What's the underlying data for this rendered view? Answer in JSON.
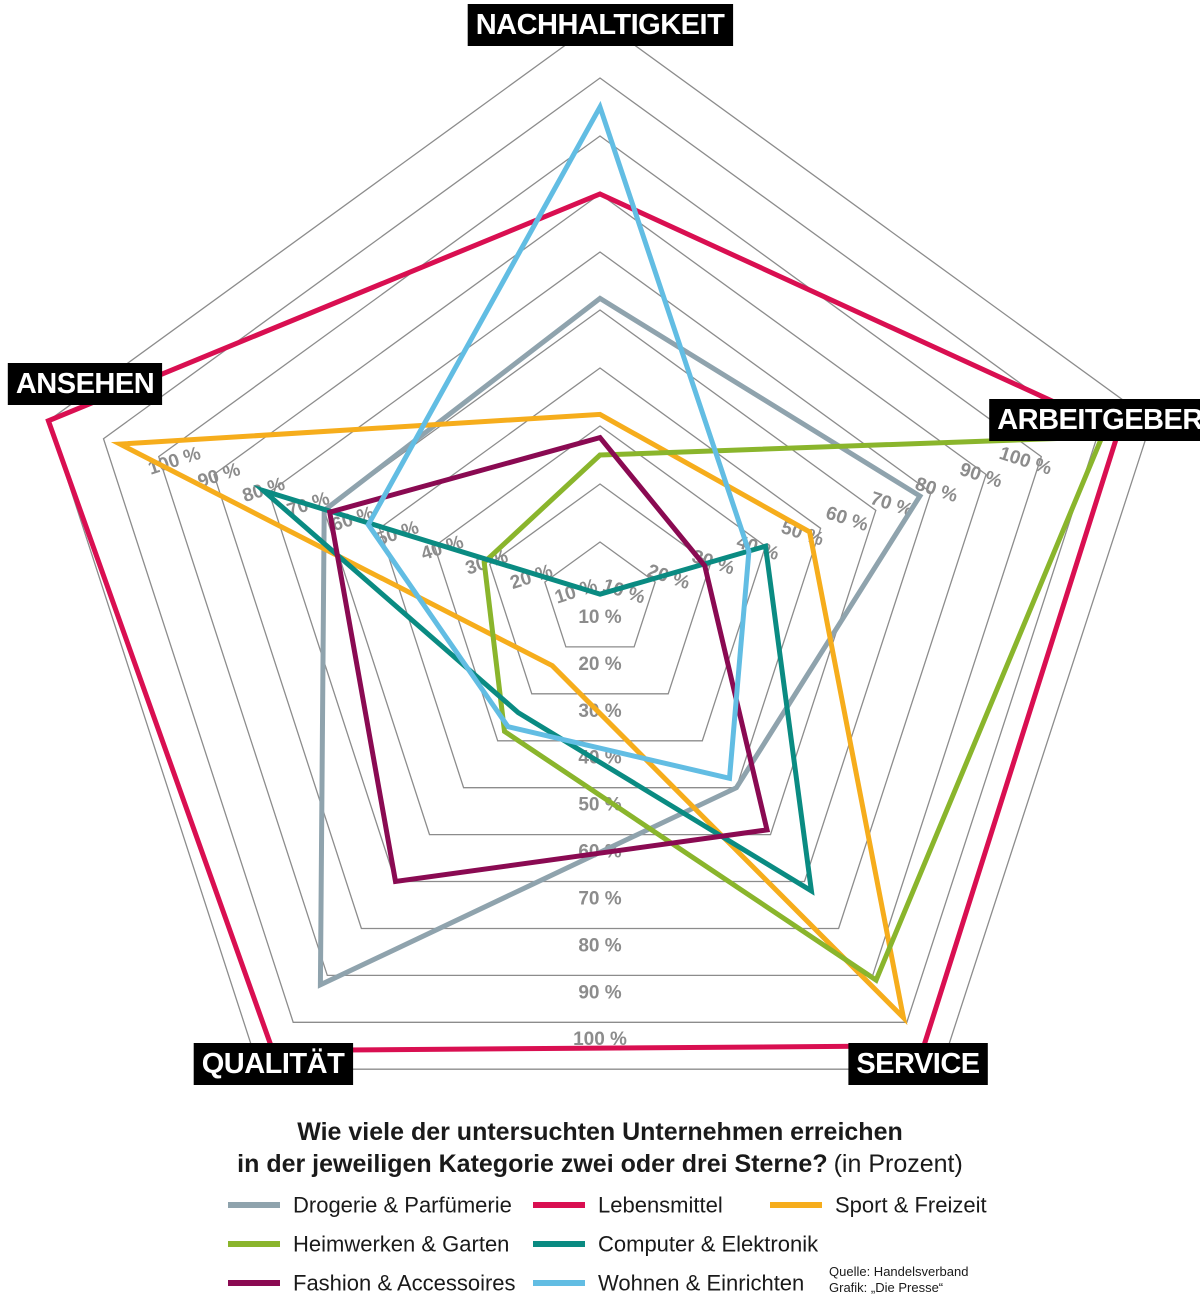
{
  "chart_data": {
    "type": "radar",
    "title": "Wie viele der untersuchten Unternehmen erreichen",
    "title_line2": "in der jeweiligen Kategorie zwei oder drei Sterne?",
    "title_suffix": "(in Prozent)",
    "axes": [
      "NACHHALTIGKEIT",
      "ARBEITGEBER",
      "SERVICE",
      "QUALITÄT",
      "ANSEHEN"
    ],
    "range": [
      0,
      100
    ],
    "grid_levels": [
      10,
      20,
      30,
      40,
      50,
      60,
      70,
      80,
      90,
      100
    ],
    "tick_labels": [
      "10 %",
      "20 %",
      "30 %",
      "40 %",
      "50 %",
      "60 %",
      "70 %",
      "80 %",
      "90 %",
      "100 %"
    ],
    "grid": true,
    "legend_position": "bottom",
    "series": [
      {
        "name": "Drogerie & Parfümerie",
        "color": "#8fa3ad",
        "values": [
          52,
          58,
          40,
          82,
          50
        ]
      },
      {
        "name": "Lebensmittel",
        "color": "#d90f51",
        "values": [
          70,
          94,
          95,
          96,
          100
        ]
      },
      {
        "name": "Sport & Freizeit",
        "color": "#f6ad1c",
        "values": [
          32,
          38,
          89,
          14,
          87
        ]
      },
      {
        "name": "Heimwerken & Garten",
        "color": "#8ab52c",
        "values": [
          25,
          91,
          81,
          28,
          21
        ]
      },
      {
        "name": "Computer & Elektronik",
        "color": "#0a8b82",
        "values": [
          1,
          30,
          62,
          24,
          61
        ]
      },
      {
        "name": "Fashion & Accessoires",
        "color": "#8a0a52",
        "values": [
          28,
          19,
          49,
          60,
          49
        ]
      },
      {
        "name": "Wohnen & Einrichten",
        "color": "#62bde3",
        "values": [
          85,
          27,
          38,
          27,
          42
        ]
      }
    ],
    "source": "Quelle: Handelsverband",
    "credit": "Grafik: „Die Presse“"
  }
}
